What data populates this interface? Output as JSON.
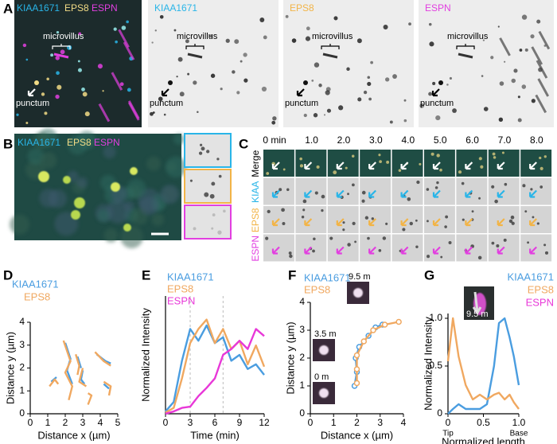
{
  "figure": {
    "A": {
      "letter": "A",
      "merge_labels": [
        "KIAA1671",
        "EPS8",
        "ESPN"
      ],
      "channel_labels": [
        "KIAA1671",
        "EPS8",
        "ESPN"
      ],
      "microvillus": "microvillus",
      "punctum": "punctum"
    },
    "B": {
      "letter": "B",
      "labels": [
        "KIAA1671",
        "EPS8",
        "ESPN"
      ]
    },
    "C": {
      "letter": "C",
      "times": [
        "0 min",
        "1.0",
        "2.0",
        "3.0",
        "4.0",
        "5.0",
        "6.0",
        "7.0",
        "8.0"
      ],
      "rows": [
        "Merge",
        "KIAA",
        "EPS8",
        "ESPN"
      ]
    }
  },
  "chart_data": [
    {
      "type": "line",
      "panel": "D",
      "xlabel": "Distance x (µm)",
      "ylabel": "Distance y (µm)",
      "xlim": [
        0,
        5
      ],
      "ylim": [
        0,
        4
      ],
      "xticks": [
        0,
        1,
        2,
        3,
        4,
        5
      ],
      "yticks": [
        0,
        1,
        2,
        3,
        4
      ],
      "series": [
        {
          "name": "KIAA1671",
          "color": "#4a9de0",
          "x": [
            1.2,
            1.5,
            null,
            2.0,
            2.3,
            2.1,
            2.4,
            null,
            2.7,
            2.9,
            null,
            3.0,
            2.9,
            3.1,
            null,
            3.8,
            4.3,
            4.6,
            null,
            4.2,
            4.5
          ],
          "values": [
            1.4,
            1.6,
            null,
            3.1,
            2.4,
            1.9,
            1.3,
            null,
            2.5,
            2.0,
            null,
            1.9,
            1.5,
            1.3,
            null,
            2.6,
            2.3,
            2.2,
            null,
            1.3,
            1.1
          ]
        },
        {
          "name": "EPS8",
          "color": "#f0a860",
          "x": [
            1.1,
            1.4,
            1.6,
            null,
            1.9,
            2.3,
            2.0,
            2.4,
            2.2,
            null,
            2.6,
            2.8,
            2.7,
            null,
            3.0,
            2.8,
            3.2,
            null,
            3.7,
            4.2,
            4.6,
            null,
            3.3,
            3.5,
            3.3,
            null,
            4.2,
            4.6,
            4.5
          ],
          "values": [
            1.2,
            1.5,
            1.3,
            null,
            3.2,
            2.3,
            1.8,
            1.2,
            0.6,
            null,
            2.6,
            2.1,
            1.7,
            null,
            2.0,
            1.4,
            1.2,
            null,
            2.7,
            2.3,
            2.1,
            null,
            0.4,
            0.8,
            0.9,
            null,
            1.4,
            1.2,
            0.8
          ]
        }
      ]
    },
    {
      "type": "line",
      "panel": "E",
      "xlabel": "Time (min)",
      "ylabel": "Normalized Intensity",
      "xlim": [
        0,
        12
      ],
      "ylim": [
        0,
        1
      ],
      "xticks": [
        0,
        3,
        6,
        9,
        12
      ],
      "reference_x": [
        3,
        7
      ],
      "x": [
        0,
        1,
        2,
        3,
        4,
        5,
        6,
        7,
        8,
        9,
        10,
        11,
        12
      ],
      "series": [
        {
          "name": "KIAA1671",
          "color": "#4a9de0",
          "values": [
            0.02,
            0.1,
            0.45,
            0.72,
            0.62,
            0.75,
            0.6,
            0.65,
            0.45,
            0.5,
            0.38,
            0.42,
            0.33
          ]
        },
        {
          "name": "EPS8",
          "color": "#f0a860",
          "values": [
            0.01,
            0.05,
            0.3,
            0.6,
            0.72,
            0.8,
            0.6,
            0.72,
            0.55,
            0.62,
            0.42,
            0.58,
            0.4
          ]
        },
        {
          "name": "ESPN",
          "color": "#e838d8",
          "values": [
            0.0,
            0.02,
            0.05,
            0.06,
            0.15,
            0.22,
            0.3,
            0.5,
            0.55,
            0.62,
            0.55,
            0.72,
            0.66
          ]
        }
      ]
    },
    {
      "type": "line",
      "panel": "F",
      "xlabel": "Distance x (µm)",
      "ylabel": "Distance y (µm)",
      "xlim": [
        0,
        4
      ],
      "ylim": [
        0,
        4
      ],
      "xticks": [
        0,
        1,
        2,
        3,
        4
      ],
      "yticks": [
        0,
        1,
        2,
        3,
        4
      ],
      "markers": true,
      "annotations": [
        "9.5 m",
        "3.5 m",
        "0 m"
      ],
      "series": [
        {
          "name": "KIAA1671",
          "color": "#4a9de0",
          "x": [
            1.9,
            2.0,
            1.95,
            2.1,
            2.5,
            2.8,
            3.1
          ],
          "values": [
            1.0,
            1.5,
            2.0,
            2.4,
            2.8,
            3.1,
            3.2
          ]
        },
        {
          "name": "EPS8",
          "color": "#f0a860",
          "x": [
            2.0,
            2.0,
            2.0,
            2.3,
            2.7,
            3.2,
            3.8
          ],
          "values": [
            1.1,
            1.6,
            2.1,
            2.6,
            3.0,
            3.2,
            3.3
          ]
        }
      ]
    },
    {
      "type": "line",
      "panel": "G",
      "xlabel": "Normalized length",
      "ylabel": "Normalized Intensity",
      "xlim": [
        0,
        1
      ],
      "ylim": [
        0,
        1.05
      ],
      "xticks": [
        0,
        0.5,
        {
          "value": 1,
          "label": "1.0"
        }
      ],
      "yticks": [
        0,
        0.5,
        {
          "value": 1,
          "label": "1.0"
        }
      ],
      "end_labels": [
        "Tip",
        "Base"
      ],
      "annotations": [
        "9.5 m"
      ],
      "x": [
        0,
        0.07,
        0.15,
        0.25,
        0.35,
        0.45,
        0.55,
        0.65,
        0.72,
        0.8,
        0.87,
        0.93,
        1.0
      ],
      "series": [
        {
          "name": "KIAA1671",
          "color": "#4a9de0",
          "values": [
            0.0,
            0.05,
            0.1,
            0.05,
            0.05,
            0.05,
            0.1,
            0.5,
            0.95,
            1.0,
            0.8,
            0.6,
            0.3
          ]
        },
        {
          "name": "EPS8",
          "color": "#f0a860",
          "values": [
            0.55,
            1.0,
            0.6,
            0.3,
            0.15,
            0.2,
            0.15,
            0.2,
            0.22,
            0.15,
            0.2,
            0.12,
            0.05
          ]
        }
      ],
      "legend_only": [
        {
          "name": "ESPN",
          "color": "#e838d8"
        }
      ]
    }
  ]
}
